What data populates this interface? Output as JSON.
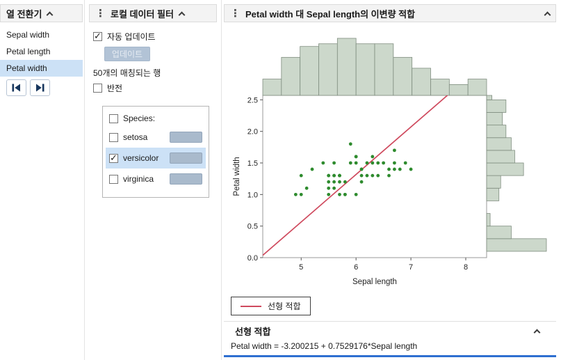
{
  "column_switcher": {
    "title": "열 전환기",
    "items": [
      "Sepal width",
      "Petal length",
      "Petal width"
    ],
    "selected": "Petal width"
  },
  "local_data_filter": {
    "title": "로컬 데이터 필터",
    "auto_update_label": "자동 업데이트",
    "auto_update_checked": true,
    "update_button_label": "업데이트",
    "matching_rows_text": "50개의 매칭되는 행",
    "invert_label": "반전",
    "species_group": {
      "label": "Species:",
      "options": [
        {
          "label": "setosa",
          "checked": false
        },
        {
          "label": "versicolor",
          "checked": true
        },
        {
          "label": "virginica",
          "checked": false
        }
      ]
    }
  },
  "bivariate": {
    "title": "Petal width 대 Sepal length의 이변량 적합",
    "legend_label": "선형 적합",
    "fit_section_title": "선형 적합",
    "equation": "Petal width = -3.200215 + 0.7529176*Sepal length"
  },
  "chart_data": {
    "type": "scatter",
    "title": "Petal width 대 Sepal length의 이변량 적합",
    "xlabel": "Sepal length",
    "ylabel": "Petal width",
    "xlim": [
      4.3,
      8.38
    ],
    "ylim": [
      0,
      2.57
    ],
    "xticks": [
      5,
      6,
      7,
      8
    ],
    "yticks": [
      0.0,
      0.5,
      1.0,
      1.5,
      2.0,
      2.5
    ],
    "point_color": "#2e8b2e",
    "points": [
      [
        7.0,
        1.4
      ],
      [
        6.4,
        1.5
      ],
      [
        6.9,
        1.5
      ],
      [
        5.5,
        1.3
      ],
      [
        6.5,
        1.5
      ],
      [
        5.7,
        1.3
      ],
      [
        6.3,
        1.6
      ],
      [
        4.9,
        1.0
      ],
      [
        6.6,
        1.3
      ],
      [
        5.2,
        1.4
      ],
      [
        5.0,
        1.0
      ],
      [
        5.9,
        1.5
      ],
      [
        6.0,
        1.0
      ],
      [
        6.1,
        1.4
      ],
      [
        5.6,
        1.3
      ],
      [
        6.7,
        1.4
      ],
      [
        5.6,
        1.5
      ],
      [
        5.8,
        1.0
      ],
      [
        6.2,
        1.5
      ],
      [
        5.6,
        1.1
      ],
      [
        5.9,
        1.8
      ],
      [
        6.1,
        1.3
      ],
      [
        6.3,
        1.5
      ],
      [
        6.1,
        1.2
      ],
      [
        6.4,
        1.3
      ],
      [
        6.6,
        1.4
      ],
      [
        6.8,
        1.4
      ],
      [
        6.7,
        1.7
      ],
      [
        6.0,
        1.5
      ],
      [
        5.7,
        1.0
      ],
      [
        5.5,
        1.1
      ],
      [
        5.5,
        1.0
      ],
      [
        5.8,
        1.2
      ],
      [
        6.0,
        1.6
      ],
      [
        5.4,
        1.5
      ],
      [
        6.0,
        1.6
      ],
      [
        6.7,
        1.5
      ],
      [
        6.3,
        1.3
      ],
      [
        5.6,
        1.3
      ],
      [
        5.5,
        1.3
      ],
      [
        5.5,
        1.2
      ],
      [
        6.1,
        1.4
      ],
      [
        5.8,
        1.0
      ],
      [
        5.0,
        1.3
      ],
      [
        5.6,
        1.2
      ],
      [
        5.7,
        1.3
      ],
      [
        5.7,
        1.2
      ],
      [
        6.2,
        1.3
      ],
      [
        5.1,
        1.1
      ],
      [
        5.7,
        1.3
      ]
    ],
    "fit_line": {
      "intercept": -3.200215,
      "slope": 0.7529176,
      "color": "#cf4a5e",
      "label": "선형 적합"
    },
    "x_histogram": {
      "bin_start": 4.3,
      "bin_width": 0.34,
      "counts": [
        6,
        14,
        18,
        19,
        21,
        19,
        19,
        14,
        10,
        6,
        4,
        6
      ],
      "fill": "#ccd8cb",
      "stroke": "#7f8d7f"
    },
    "y_histogram": {
      "bin_start": 0.1,
      "bin_width": 0.2,
      "counts": [
        34,
        14,
        2,
        0,
        7,
        8,
        21,
        16,
        14,
        11,
        9,
        11,
        3
      ],
      "fill": "#ccd8cb",
      "stroke": "#7f8d7f"
    }
  }
}
